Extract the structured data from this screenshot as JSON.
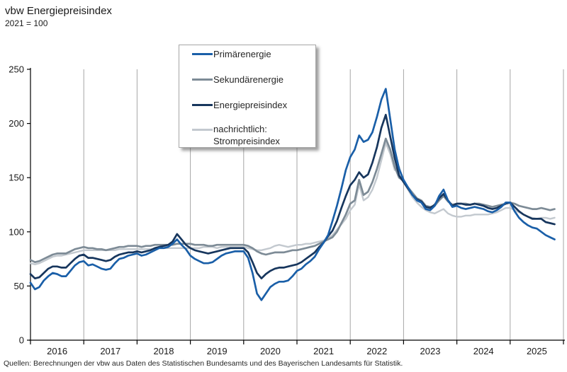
{
  "header": {
    "title": "vbw Energiepreisindex",
    "subtitle": "2021 = 100"
  },
  "footer": {
    "source": "Quellen: Berechnungen der vbw aus Daten des Statistischen Bundesamts und des Bayerischen Landesamts für Statistik."
  },
  "colors": {
    "primaerenergie": "#1a5fa8",
    "sekundaerenergie": "#7d8b96",
    "energiepreisindex": "#17365d",
    "strompreisindex": "#c3c9cf",
    "gridline": "#a6a6a6",
    "axis": "#000000"
  },
  "chart_data": {
    "type": "line",
    "title": "vbw Energiepreisindex",
    "subtitle": "2021 = 100",
    "frequency": "monthly",
    "x_start": "2016-01",
    "x_end": "2025-11",
    "x_tick_labels": [
      "2016",
      "2017",
      "2018",
      "2019",
      "2020",
      "2021",
      "2022",
      "2023",
      "2024",
      "2025"
    ],
    "ylim": [
      0,
      250
    ],
    "y_ticks": [
      0,
      50,
      100,
      150,
      200,
      250
    ],
    "grid": "vertical yearly gridlines, no horizontal gridlines",
    "legend_position": "top overlay box with shadow",
    "series": [
      {
        "name": "Primärenergie",
        "legend_lines": [
          "Primärenergie"
        ],
        "color": "#1a5fa8",
        "values": [
          53,
          47,
          49,
          55,
          59,
          62,
          61,
          59,
          59,
          64,
          69,
          72,
          73,
          69,
          70,
          68,
          66,
          65,
          66,
          71,
          75,
          76,
          78,
          79,
          80,
          78,
          79,
          81,
          83,
          85,
          85,
          86,
          89,
          93,
          88,
          84,
          78,
          75,
          73,
          71,
          71,
          72,
          75,
          78,
          80,
          81,
          82,
          82,
          82,
          76,
          62,
          43,
          37,
          43,
          49,
          52,
          54,
          54,
          55,
          59,
          64,
          66,
          70,
          73,
          77,
          84,
          90,
          97,
          110,
          124,
          140,
          157,
          169,
          176,
          189,
          183,
          185,
          192,
          206,
          222,
          232,
          204,
          176,
          158,
          148,
          141,
          134,
          129,
          127,
          121,
          120,
          124,
          133,
          139,
          129,
          123,
          124,
          122,
          121,
          122,
          123,
          122,
          121,
          119,
          118,
          120,
          123,
          127,
          127,
          119,
          113,
          109,
          106,
          104,
          103,
          100,
          97,
          95,
          93
        ]
      },
      {
        "name": "Sekundärenergie",
        "legend_lines": [
          "Sekundärenergie"
        ],
        "color": "#7d8b96",
        "values": [
          74,
          72,
          73,
          75,
          77,
          79,
          80,
          80,
          80,
          82,
          84,
          85,
          86,
          85,
          85,
          84,
          84,
          83,
          84,
          85,
          86,
          86,
          87,
          87,
          87,
          86,
          87,
          87,
          88,
          88,
          88,
          88,
          88,
          89,
          89,
          89,
          89,
          88,
          88,
          88,
          87,
          87,
          88,
          88,
          88,
          88,
          88,
          88,
          88,
          87,
          85,
          82,
          80,
          79,
          80,
          81,
          81,
          81,
          82,
          83,
          83,
          84,
          85,
          86,
          87,
          89,
          91,
          93,
          95,
          100,
          108,
          116,
          126,
          129,
          148,
          134,
          137,
          146,
          158,
          172,
          186,
          176,
          160,
          150,
          147,
          141,
          136,
          131,
          129,
          124,
          123,
          124,
          129,
          133,
          128,
          125,
          126,
          126,
          126,
          125,
          126,
          126,
          125,
          124,
          123,
          124,
          125,
          126,
          127,
          126,
          124,
          123,
          122,
          121,
          121,
          122,
          121,
          120,
          121
        ]
      },
      {
        "name": "Energiepreisindex",
        "legend_lines": [
          "Energiepreisindex"
        ],
        "color": "#17365d",
        "values": [
          61,
          57,
          58,
          62,
          66,
          68,
          68,
          67,
          67,
          71,
          75,
          78,
          79,
          76,
          76,
          75,
          74,
          73,
          74,
          77,
          79,
          80,
          81,
          81,
          82,
          81,
          82,
          83,
          85,
          86,
          87,
          88,
          91,
          98,
          93,
          88,
          85,
          83,
          82,
          81,
          80,
          81,
          82,
          83,
          84,
          85,
          85,
          85,
          85,
          81,
          72,
          62,
          57,
          61,
          64,
          66,
          67,
          67,
          68,
          69,
          70,
          72,
          75,
          78,
          81,
          86,
          90,
          96,
          101,
          110,
          122,
          133,
          143,
          148,
          155,
          150,
          153,
          164,
          178,
          196,
          208,
          188,
          168,
          152,
          146,
          140,
          134,
          130,
          128,
          123,
          122,
          125,
          131,
          135,
          129,
          124,
          126,
          126,
          125,
          125,
          126,
          125,
          124,
          122,
          121,
          122,
          124,
          126,
          127,
          123,
          119,
          116,
          114,
          112,
          112,
          112,
          109,
          108,
          107
        ]
      },
      {
        "name": "nachrichtlich: Strompreisindex",
        "legend_lines": [
          "nachrichtlich:",
          "Strompreisindex"
        ],
        "color": "#c3c9cf",
        "values": [
          71,
          70,
          71,
          73,
          75,
          77,
          78,
          78,
          79,
          80,
          81,
          82,
          83,
          83,
          83,
          83,
          83,
          83,
          83,
          83,
          84,
          84,
          84,
          84,
          84,
          84,
          84,
          84,
          84,
          85,
          85,
          85,
          85,
          85,
          85,
          85,
          85,
          85,
          85,
          86,
          86,
          86,
          85,
          86,
          86,
          86,
          86,
          86,
          86,
          85,
          84,
          83,
          83,
          84,
          85,
          87,
          88,
          87,
          86,
          87,
          88,
          88,
          89,
          89,
          90,
          91,
          92,
          94,
          97,
          102,
          107,
          112,
          120,
          125,
          144,
          129,
          132,
          139,
          150,
          166,
          182,
          172,
          157,
          160,
          146,
          139,
          132,
          127,
          123,
          120,
          118,
          117,
          119,
          121,
          117,
          115,
          114,
          114,
          115,
          115,
          116,
          116,
          116,
          116,
          117,
          118,
          120,
          122,
          122,
          120,
          118,
          116,
          114,
          113,
          112,
          113,
          113,
          112,
          113
        ]
      }
    ]
  }
}
